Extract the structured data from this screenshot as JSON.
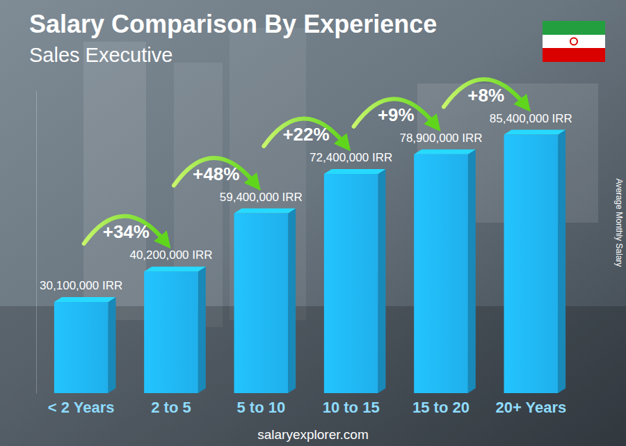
{
  "chart_data": {
    "type": "bar",
    "title": "Salary Comparison By Experience",
    "subtitle": "Sales Executive",
    "y_label": "Average Monthly Salary",
    "source": "salaryexplorer.com",
    "categories": [
      "< 2 Years",
      "2 to 5",
      "5 to 10",
      "10 to 15",
      "15 to 20",
      "20+ Years"
    ],
    "values": [
      30100000,
      40200000,
      59400000,
      72400000,
      78900000,
      85400000
    ],
    "value_labels": [
      "30,100,000 IRR",
      "40,200,000 IRR",
      "59,400,000 IRR",
      "72,400,000 IRR",
      "78,900,000 IRR",
      "85,400,000 IRR"
    ],
    "annotations": [
      "+34%",
      "+48%",
      "+22%",
      "+9%",
      "+8%"
    ],
    "color": "#1fb0ec",
    "ylim": [
      0,
      100000000
    ],
    "data_labels": true,
    "tick_labels": "x",
    "grid": false
  }
}
